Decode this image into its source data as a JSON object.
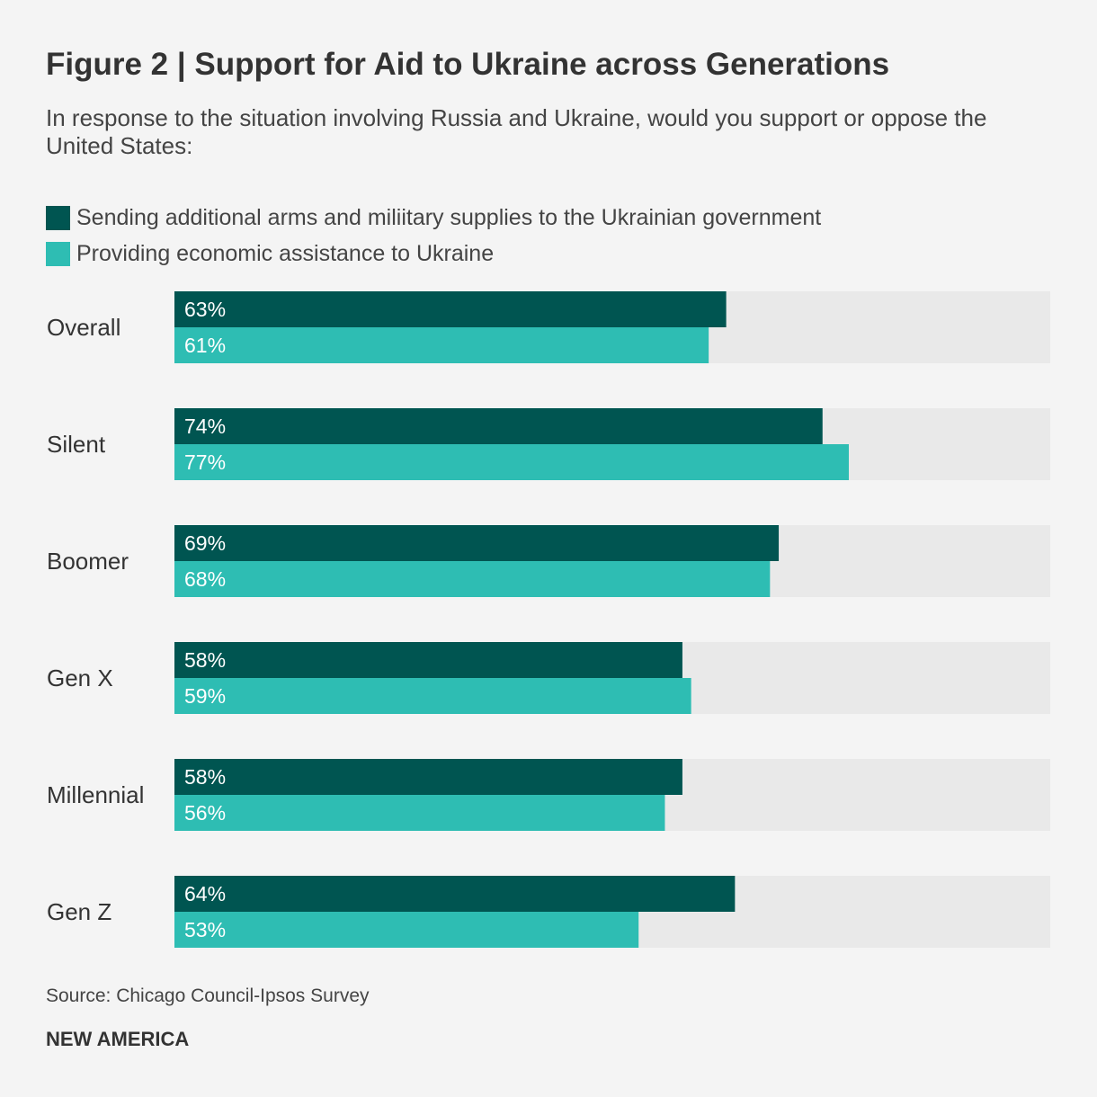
{
  "title": "Figure 2 | Support for Aid to Ukraine across Generations",
  "subtitle": "In response to the situation involving Russia and Ukraine, would you support or oppose the United States:",
  "source": "Source: Chicago Council-Ipsos Survey",
  "brand": "NEW AMERICA",
  "colors": {
    "arms": "#005551",
    "economic": "#2ebdb3",
    "track": "#e9e9e9",
    "bar_text": "#ffffff",
    "label_text": "#333333"
  },
  "chart_data": {
    "type": "bar",
    "orientation": "horizontal",
    "categories": [
      "Overall",
      "Silent",
      "Boomer",
      "Gen X",
      "Millennial",
      "Gen Z"
    ],
    "series": [
      {
        "name": "Sending additional arms and miliitary supplies to the Ukrainian government",
        "values": [
          63,
          74,
          69,
          58,
          58,
          64
        ]
      },
      {
        "name": "Providing economic assistance to Ukraine",
        "values": [
          61,
          77,
          68,
          59,
          56,
          53
        ]
      }
    ],
    "value_suffix": "%",
    "xlim": [
      0,
      100
    ],
    "legend_position": "top-left"
  }
}
